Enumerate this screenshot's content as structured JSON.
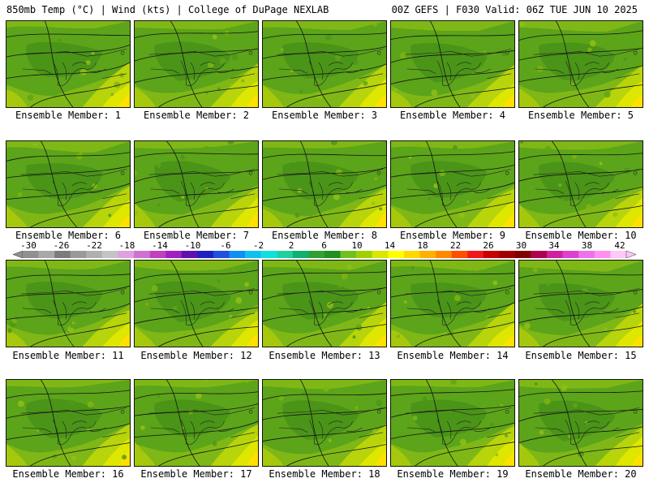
{
  "header": {
    "left_title": "850mb Temp (°C) | Wind (kts) | College of DuPage NEXLAB",
    "right_title": "00Z GEFS | F030 Valid: 06Z TUE JUN 10 2025"
  },
  "panels": [
    {
      "caption": "Ensemble Member: 1"
    },
    {
      "caption": "Ensemble Member: 2"
    },
    {
      "caption": "Ensemble Member: 3"
    },
    {
      "caption": "Ensemble Member: 4"
    },
    {
      "caption": "Ensemble Member: 5"
    },
    {
      "caption": "Ensemble Member: 6"
    },
    {
      "caption": "Ensemble Member: 7"
    },
    {
      "caption": "Ensemble Member: 8"
    },
    {
      "caption": "Ensemble Member: 9"
    },
    {
      "caption": "Ensemble Member: 10"
    },
    {
      "caption": "Ensemble Member: 11"
    },
    {
      "caption": "Ensemble Member: 12"
    },
    {
      "caption": "Ensemble Member: 13"
    },
    {
      "caption": "Ensemble Member: 14"
    },
    {
      "caption": "Ensemble Member: 15"
    },
    {
      "caption": "Ensemble Member: 16"
    },
    {
      "caption": "Ensemble Member: 17"
    },
    {
      "caption": "Ensemble Member: 18"
    },
    {
      "caption": "Ensemble Member: 19"
    },
    {
      "caption": "Ensemble Member: 20"
    }
  ],
  "colorbar": {
    "labels": [
      "-30",
      "-26",
      "-22",
      "-18",
      "-14",
      "-10",
      "-6",
      "-2",
      "2",
      "6",
      "10",
      "14",
      "18",
      "22",
      "26",
      "30",
      "34",
      "38",
      "42"
    ],
    "colors": [
      "#909090",
      "#a8a8a8",
      "#7c7c7c",
      "#9a9a9a",
      "#b0b0b0",
      "#c4c4c4",
      "#e0a0e0",
      "#d070d0",
      "#c040c0",
      "#a020c0",
      "#6010b0",
      "#2020c0",
      "#2050e0",
      "#1090f0",
      "#10c0f0",
      "#10e0e0",
      "#20d0a0",
      "#10b070",
      "#30a030",
      "#209020",
      "#70c020",
      "#a0d000",
      "#d8e800",
      "#ffff00",
      "#ffd800",
      "#ffb000",
      "#ff8800",
      "#ff5000",
      "#f01818",
      "#c80000",
      "#a00000",
      "#800000",
      "#b00050",
      "#d020a0",
      "#e040d0",
      "#f070e8",
      "#ff90f0",
      "#ffc8f8"
    ]
  }
}
